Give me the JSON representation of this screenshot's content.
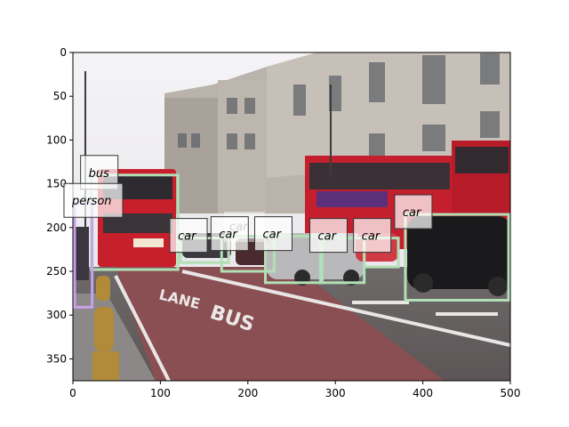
{
  "chart_data": {
    "type": "image-annotation",
    "image": {
      "width": 500,
      "height": 375
    },
    "axes": {
      "xlim": [
        0,
        500
      ],
      "ylim": [
        375,
        0
      ],
      "xticks": [
        0,
        100,
        200,
        300,
        400,
        500
      ],
      "yticks": [
        0,
        50,
        100,
        150,
        200,
        250,
        300,
        350
      ]
    },
    "boxes": [
      {
        "label": "bus",
        "color": "#b2dfb5",
        "x0": 21,
        "y0": 140,
        "x1": 120,
        "y1": 248
      },
      {
        "label": "person",
        "color": "#c8a2e8",
        "x0": 2,
        "y0": 172,
        "x1": 22,
        "y1": 291
      },
      {
        "label": "car",
        "color": "#b2dfb5",
        "x0": 123,
        "y0": 212,
        "x1": 178,
        "y1": 240
      },
      {
        "label": "car",
        "color": "#b2dfb5",
        "x0": 170,
        "y0": 210,
        "x1": 230,
        "y1": 250
      },
      {
        "label": "car",
        "color": "#b2dfb5",
        "x0": 220,
        "y0": 210,
        "x1": 285,
        "y1": 263
      },
      {
        "label": "car",
        "color": "#b2dfb5",
        "x0": 283,
        "y0": 212,
        "x1": 333,
        "y1": 263
      },
      {
        "label": "car",
        "color": "#b2dfb5",
        "x0": 333,
        "y0": 212,
        "x1": 372,
        "y1": 245
      },
      {
        "label": "car",
        "color": "#b2dfb5",
        "x0": 380,
        "y0": 185,
        "x1": 498,
        "y1": 283
      }
    ],
    "faded_label": "car"
  }
}
